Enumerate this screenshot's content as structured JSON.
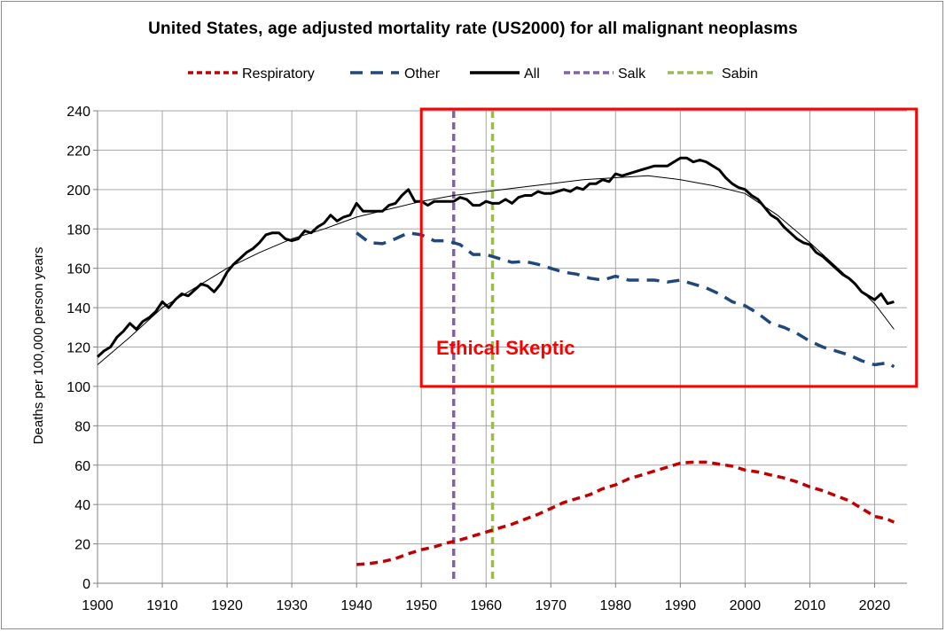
{
  "chart_data": {
    "type": "line",
    "title": "United States, age adjusted mortality rate (US2000) for all malignant neoplasms",
    "xlabel": "",
    "ylabel": "Deaths per 100,000 person years",
    "xlim": [
      1900,
      2025
    ],
    "ylim": [
      0,
      240
    ],
    "x_ticks": [
      "1900",
      "1910",
      "1920",
      "1930",
      "1940",
      "1950",
      "1960",
      "1970",
      "1980",
      "1990",
      "2000",
      "2010",
      "2020"
    ],
    "y_ticks": [
      "0",
      "20",
      "40",
      "60",
      "80",
      "100",
      "120",
      "140",
      "160",
      "180",
      "200",
      "220",
      "240"
    ],
    "grid": true,
    "legend_position": "top",
    "annotation": "Ethical Skeptic",
    "highlight_box": {
      "x": [
        1950,
        2024
      ],
      "y": [
        100,
        240
      ]
    },
    "series": [
      {
        "name": "Respiratory",
        "color": "#c00000",
        "style": "dashed",
        "points": [
          [
            1940,
            9.5
          ],
          [
            1942,
            10
          ],
          [
            1944,
            11
          ],
          [
            1946,
            12.5
          ],
          [
            1948,
            15
          ],
          [
            1950,
            17
          ],
          [
            1952,
            18.5
          ],
          [
            1954,
            20.5
          ],
          [
            1956,
            22
          ],
          [
            1958,
            24
          ],
          [
            1960,
            26
          ],
          [
            1962,
            28
          ],
          [
            1964,
            30
          ],
          [
            1966,
            32.5
          ],
          [
            1968,
            35
          ],
          [
            1970,
            38
          ],
          [
            1972,
            41
          ],
          [
            1974,
            43
          ],
          [
            1976,
            45
          ],
          [
            1978,
            48
          ],
          [
            1980,
            50
          ],
          [
            1982,
            53
          ],
          [
            1984,
            55
          ],
          [
            1986,
            57
          ],
          [
            1988,
            59
          ],
          [
            1990,
            61
          ],
          [
            1992,
            61.5
          ],
          [
            1994,
            61.5
          ],
          [
            1996,
            60.5
          ],
          [
            1998,
            59.5
          ],
          [
            2000,
            57.5
          ],
          [
            2002,
            56.5
          ],
          [
            2004,
            55
          ],
          [
            2006,
            53.5
          ],
          [
            2008,
            51.5
          ],
          [
            2010,
            49
          ],
          [
            2012,
            47
          ],
          [
            2014,
            44.5
          ],
          [
            2016,
            42
          ],
          [
            2018,
            38
          ],
          [
            2020,
            34
          ],
          [
            2022,
            32.5
          ],
          [
            2023,
            31
          ]
        ]
      },
      {
        "name": "Other",
        "color": "#1f497d",
        "style": "dashed",
        "points": [
          [
            1940,
            178
          ],
          [
            1942,
            173
          ],
          [
            1944,
            172.5
          ],
          [
            1946,
            175
          ],
          [
            1948,
            178
          ],
          [
            1950,
            177
          ],
          [
            1952,
            174
          ],
          [
            1954,
            174
          ],
          [
            1956,
            172
          ],
          [
            1958,
            167
          ],
          [
            1960,
            167
          ],
          [
            1962,
            165
          ],
          [
            1964,
            163
          ],
          [
            1966,
            163.5
          ],
          [
            1968,
            162
          ],
          [
            1970,
            160
          ],
          [
            1972,
            158
          ],
          [
            1974,
            157
          ],
          [
            1976,
            155
          ],
          [
            1978,
            154
          ],
          [
            1980,
            156
          ],
          [
            1982,
            154
          ],
          [
            1984,
            154
          ],
          [
            1986,
            154
          ],
          [
            1988,
            153
          ],
          [
            1990,
            154
          ],
          [
            1992,
            152
          ],
          [
            1994,
            150
          ],
          [
            1996,
            147
          ],
          [
            1998,
            143
          ],
          [
            2000,
            141
          ],
          [
            2002,
            137
          ],
          [
            2004,
            132
          ],
          [
            2006,
            130
          ],
          [
            2008,
            127
          ],
          [
            2010,
            123
          ],
          [
            2012,
            120
          ],
          [
            2014,
            118
          ],
          [
            2016,
            116
          ],
          [
            2018,
            113
          ],
          [
            2020,
            111
          ],
          [
            2022,
            112
          ],
          [
            2023,
            110
          ]
        ]
      },
      {
        "name": "All",
        "color": "#000000",
        "style": "solid",
        "points": [
          [
            1900,
            115
          ],
          [
            1901,
            118
          ],
          [
            1902,
            120
          ],
          [
            1903,
            125
          ],
          [
            1904,
            128
          ],
          [
            1905,
            132
          ],
          [
            1906,
            129
          ],
          [
            1907,
            133
          ],
          [
            1908,
            135
          ],
          [
            1909,
            138
          ],
          [
            1910,
            143
          ],
          [
            1911,
            140
          ],
          [
            1912,
            144
          ],
          [
            1913,
            147
          ],
          [
            1914,
            146
          ],
          [
            1915,
            149
          ],
          [
            1916,
            152
          ],
          [
            1917,
            151
          ],
          [
            1918,
            148
          ],
          [
            1919,
            152
          ],
          [
            1920,
            158
          ],
          [
            1921,
            162
          ],
          [
            1922,
            165
          ],
          [
            1923,
            168
          ],
          [
            1924,
            170
          ],
          [
            1925,
            173
          ],
          [
            1926,
            177
          ],
          [
            1927,
            178
          ],
          [
            1928,
            178
          ],
          [
            1929,
            175
          ],
          [
            1930,
            174
          ],
          [
            1931,
            175
          ],
          [
            1932,
            179
          ],
          [
            1933,
            178
          ],
          [
            1934,
            181
          ],
          [
            1935,
            183
          ],
          [
            1936,
            187
          ],
          [
            1937,
            184
          ],
          [
            1938,
            186
          ],
          [
            1939,
            187
          ],
          [
            1940,
            193
          ],
          [
            1941,
            189
          ],
          [
            1942,
            189
          ],
          [
            1943,
            189
          ],
          [
            1944,
            189
          ],
          [
            1945,
            192
          ],
          [
            1946,
            193
          ],
          [
            1947,
            197
          ],
          [
            1948,
            200
          ],
          [
            1949,
            194
          ],
          [
            1950,
            194
          ],
          [
            1951,
            192
          ],
          [
            1952,
            194
          ],
          [
            1953,
            194
          ],
          [
            1954,
            194
          ],
          [
            1955,
            194
          ],
          [
            1956,
            196
          ],
          [
            1957,
            195
          ],
          [
            1958,
            192
          ],
          [
            1959,
            192
          ],
          [
            1960,
            194
          ],
          [
            1961,
            193
          ],
          [
            1962,
            193
          ],
          [
            1963,
            195
          ],
          [
            1964,
            193
          ],
          [
            1965,
            196
          ],
          [
            1966,
            197
          ],
          [
            1967,
            197
          ],
          [
            1968,
            199
          ],
          [
            1969,
            198
          ],
          [
            1970,
            198
          ],
          [
            1971,
            199
          ],
          [
            1972,
            200
          ],
          [
            1973,
            199
          ],
          [
            1974,
            201
          ],
          [
            1975,
            200
          ],
          [
            1976,
            203
          ],
          [
            1977,
            203
          ],
          [
            1978,
            205
          ],
          [
            1979,
            204
          ],
          [
            1980,
            208
          ],
          [
            1981,
            207
          ],
          [
            1982,
            208
          ],
          [
            1983,
            209
          ],
          [
            1984,
            210
          ],
          [
            1985,
            211
          ],
          [
            1986,
            212
          ],
          [
            1987,
            212
          ],
          [
            1988,
            212
          ],
          [
            1989,
            214
          ],
          [
            1990,
            216
          ],
          [
            1991,
            216
          ],
          [
            1992,
            214
          ],
          [
            1993,
            215
          ],
          [
            1994,
            214
          ],
          [
            1995,
            212
          ],
          [
            1996,
            210
          ],
          [
            1997,
            206
          ],
          [
            1998,
            203
          ],
          [
            1999,
            201
          ],
          [
            2000,
            200
          ],
          [
            2001,
            197
          ],
          [
            2002,
            195
          ],
          [
            2003,
            191
          ],
          [
            2004,
            187
          ],
          [
            2005,
            185
          ],
          [
            2006,
            181
          ],
          [
            2007,
            178
          ],
          [
            2008,
            175
          ],
          [
            2009,
            173
          ],
          [
            2010,
            172
          ],
          [
            2011,
            168
          ],
          [
            2012,
            166
          ],
          [
            2013,
            163
          ],
          [
            2014,
            160
          ],
          [
            2015,
            157
          ],
          [
            2016,
            155
          ],
          [
            2017,
            152
          ],
          [
            2018,
            148
          ],
          [
            2019,
            146
          ],
          [
            2020,
            144
          ],
          [
            2021,
            147
          ],
          [
            2022,
            142
          ],
          [
            2023,
            143
          ]
        ]
      },
      {
        "name": "",
        "color": "#000000",
        "style": "thin-trend",
        "points": [
          [
            1900,
            111
          ],
          [
            1905,
            125
          ],
          [
            1910,
            140
          ],
          [
            1915,
            150
          ],
          [
            1920,
            160
          ],
          [
            1925,
            168
          ],
          [
            1930,
            175
          ],
          [
            1935,
            180
          ],
          [
            1940,
            186
          ],
          [
            1945,
            190
          ],
          [
            1950,
            194
          ],
          [
            1955,
            197
          ],
          [
            1960,
            199
          ],
          [
            1965,
            201
          ],
          [
            1970,
            203
          ],
          [
            1975,
            205
          ],
          [
            1980,
            206
          ],
          [
            1985,
            207
          ],
          [
            1990,
            205
          ],
          [
            1995,
            202
          ],
          [
            2000,
            198
          ],
          [
            2005,
            187
          ],
          [
            2010,
            173
          ],
          [
            2015,
            158
          ],
          [
            2020,
            142
          ],
          [
            2023,
            129
          ]
        ]
      },
      {
        "name": "Salk",
        "color": "#8064a2",
        "style": "vline",
        "x": 1955
      },
      {
        "name": "Sabin",
        "color": "#9bbb59",
        "style": "vline",
        "x": 1961
      }
    ]
  }
}
